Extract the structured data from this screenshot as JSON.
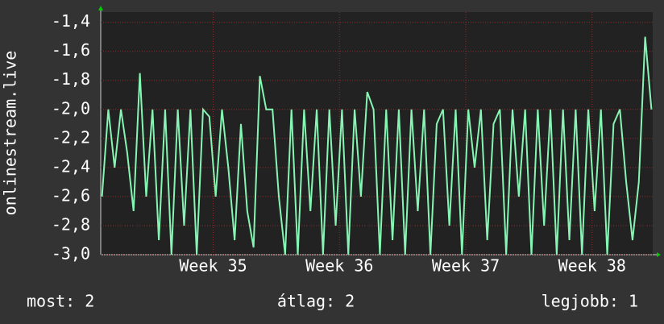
{
  "chart_data": {
    "type": "line",
    "ylabel": "onlinestream.live",
    "x": [
      34.12,
      34.17,
      34.22,
      34.27,
      34.32,
      34.37,
      34.42,
      34.47,
      34.52,
      34.57,
      34.62,
      34.67,
      34.72,
      34.77,
      34.82,
      34.87,
      34.92,
      34.97,
      35.02,
      35.07,
      35.12,
      35.17,
      35.22,
      35.27,
      35.32,
      35.37,
      35.42,
      35.47,
      35.52,
      35.57,
      35.62,
      35.67,
      35.72,
      35.77,
      35.82,
      35.87,
      35.92,
      35.97,
      36.02,
      36.07,
      36.12,
      36.17,
      36.22,
      36.27,
      36.32,
      36.37,
      36.42,
      36.47,
      36.52,
      36.57,
      36.62,
      36.67,
      36.72,
      36.77,
      36.82,
      36.87,
      36.92,
      36.97,
      37.02,
      37.07,
      37.12,
      37.17,
      37.22,
      37.27,
      37.32,
      37.37,
      37.42,
      37.47,
      37.52,
      37.57,
      37.62,
      37.67,
      37.72,
      37.77,
      37.82,
      37.87,
      37.92,
      37.97,
      38.02,
      38.07,
      38.12,
      38.17,
      38.22,
      38.27,
      38.32,
      38.37,
      38.42,
      38.47
    ],
    "values": [
      -2.6,
      -2.0,
      -2.4,
      -2.0,
      -2.3,
      -2.7,
      -1.75,
      -2.6,
      -2.0,
      -2.9,
      -2.0,
      -3.0,
      -2.0,
      -2.8,
      -2.0,
      -3.0,
      -2.0,
      -2.05,
      -2.6,
      -2.0,
      -2.4,
      -2.9,
      -2.1,
      -2.7,
      -2.95,
      -1.77,
      -2.0,
      -2.0,
      -2.6,
      -3.0,
      -2.0,
      -3.0,
      -2.0,
      -2.7,
      -2.0,
      -3.0,
      -2.0,
      -2.8,
      -2.0,
      -3.0,
      -2.0,
      -2.6,
      -1.88,
      -2.0,
      -3.0,
      -2.0,
      -2.9,
      -2.0,
      -3.0,
      -2.0,
      -2.7,
      -2.0,
      -3.0,
      -2.1,
      -2.0,
      -2.8,
      -2.0,
      -3.0,
      -2.0,
      -2.4,
      -2.0,
      -2.9,
      -2.1,
      -2.0,
      -3.0,
      -2.0,
      -2.6,
      -2.0,
      -3.0,
      -2.0,
      -2.8,
      -2.0,
      -3.0,
      -2.0,
      -2.9,
      -2.0,
      -3.0,
      -2.0,
      -2.7,
      -2.0,
      -3.0,
      -2.1,
      -2.0,
      -2.5,
      -2.9,
      -2.5,
      -1.5,
      -2.0
    ],
    "color": "#86f5b4",
    "xlim": [
      34.11,
      38.48
    ],
    "xticks": [
      {
        "value": 35,
        "label": "Week 35"
      },
      {
        "value": 36,
        "label": "Week 36"
      },
      {
        "value": 37,
        "label": "Week 37"
      },
      {
        "value": 38,
        "label": "Week 38"
      }
    ],
    "ylim": [
      -3.0,
      -1.33
    ],
    "yticks": [
      {
        "value": -3.0,
        "label": "-3,0"
      },
      {
        "value": -2.8,
        "label": "-2,8"
      },
      {
        "value": -2.6,
        "label": "-2,6"
      },
      {
        "value": -2.4,
        "label": "-2,4"
      },
      {
        "value": -2.2,
        "label": "-2,2"
      },
      {
        "value": -2.0,
        "label": "-2,0"
      },
      {
        "value": -1.8,
        "label": "-1,8"
      },
      {
        "value": -1.6,
        "label": "-1,6"
      },
      {
        "value": -1.4,
        "label": "-1,4"
      }
    ],
    "grid": true
  },
  "footer": [
    "most: 2",
    "átlag: 2",
    "legjobb: 1"
  ]
}
